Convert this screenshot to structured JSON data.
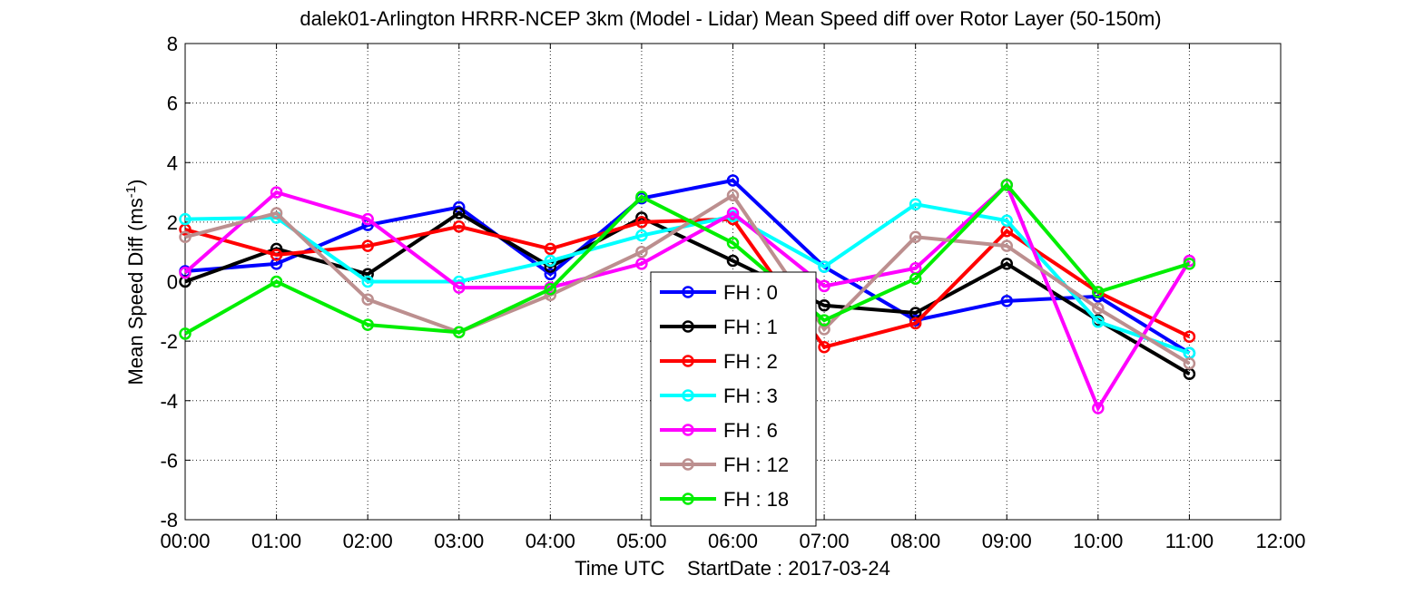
{
  "chart_data": {
    "type": "line",
    "title": "dalek01-Arlington HRRR-NCEP 3km (Model - Lidar) Mean Speed diff over Rotor Layer (50-150m)",
    "xlabel": "Time UTC    StartDate : 2017-03-24",
    "ylabel": "Mean Speed Diff (ms",
    "ylabel_sup": "-1",
    "ylabel_close": ")",
    "x_tick_labels": [
      "00:00",
      "01:00",
      "02:00",
      "03:00",
      "04:00",
      "05:00",
      "06:00",
      "07:00",
      "08:00",
      "09:00",
      "10:00",
      "11:00",
      "12:00"
    ],
    "x": [
      0,
      1,
      2,
      3,
      4,
      5,
      6,
      7,
      8,
      9,
      10,
      11
    ],
    "xlim": [
      0,
      12
    ],
    "ylim": [
      -8,
      8
    ],
    "y_ticks": [
      -8,
      -6,
      -4,
      -2,
      0,
      2,
      4,
      6,
      8
    ],
    "grid": true,
    "grid_style": "dotted",
    "legend_position": "bottom-center",
    "series": [
      {
        "name": "FH : 0",
        "color": "#0000ff",
        "values": [
          0.35,
          0.6,
          1.9,
          2.5,
          0.25,
          2.8,
          3.4,
          0.5,
          -1.3,
          -0.65,
          -0.5,
          -2.4
        ]
      },
      {
        "name": "FH : 1",
        "color": "#000000",
        "values": [
          0.0,
          1.1,
          0.25,
          2.3,
          0.5,
          2.15,
          0.7,
          -0.8,
          -1.05,
          0.6,
          -1.3,
          -3.1
        ]
      },
      {
        "name": "FH : 2",
        "color": "#ff0000",
        "values": [
          1.75,
          0.9,
          1.2,
          1.85,
          1.1,
          2.0,
          2.1,
          -2.2,
          -1.4,
          1.7,
          -0.35,
          -1.85
        ]
      },
      {
        "name": "FH : 3",
        "color": "#00ffff",
        "values": [
          2.1,
          2.15,
          0.0,
          0.0,
          0.7,
          1.55,
          2.2,
          0.5,
          2.6,
          2.05,
          -1.35,
          -2.4
        ]
      },
      {
        "name": "FH : 6",
        "color": "#ff00ff",
        "values": [
          0.3,
          3.0,
          2.1,
          -0.2,
          -0.2,
          0.6,
          2.3,
          -0.15,
          0.45,
          3.25,
          -4.25,
          0.7
        ]
      },
      {
        "name": "FH : 12",
        "color": "#bc8f8f",
        "values": [
          1.5,
          2.3,
          -0.6,
          -1.7,
          -0.45,
          1.0,
          2.9,
          -1.6,
          1.5,
          1.2,
          -0.9,
          -2.75
        ]
      },
      {
        "name": "FH : 18",
        "color": "#00ee00",
        "values": [
          -1.75,
          0.0,
          -1.45,
          -1.7,
          -0.25,
          2.85,
          1.3,
          -1.3,
          0.1,
          3.25,
          -0.35,
          0.6
        ]
      }
    ]
  }
}
